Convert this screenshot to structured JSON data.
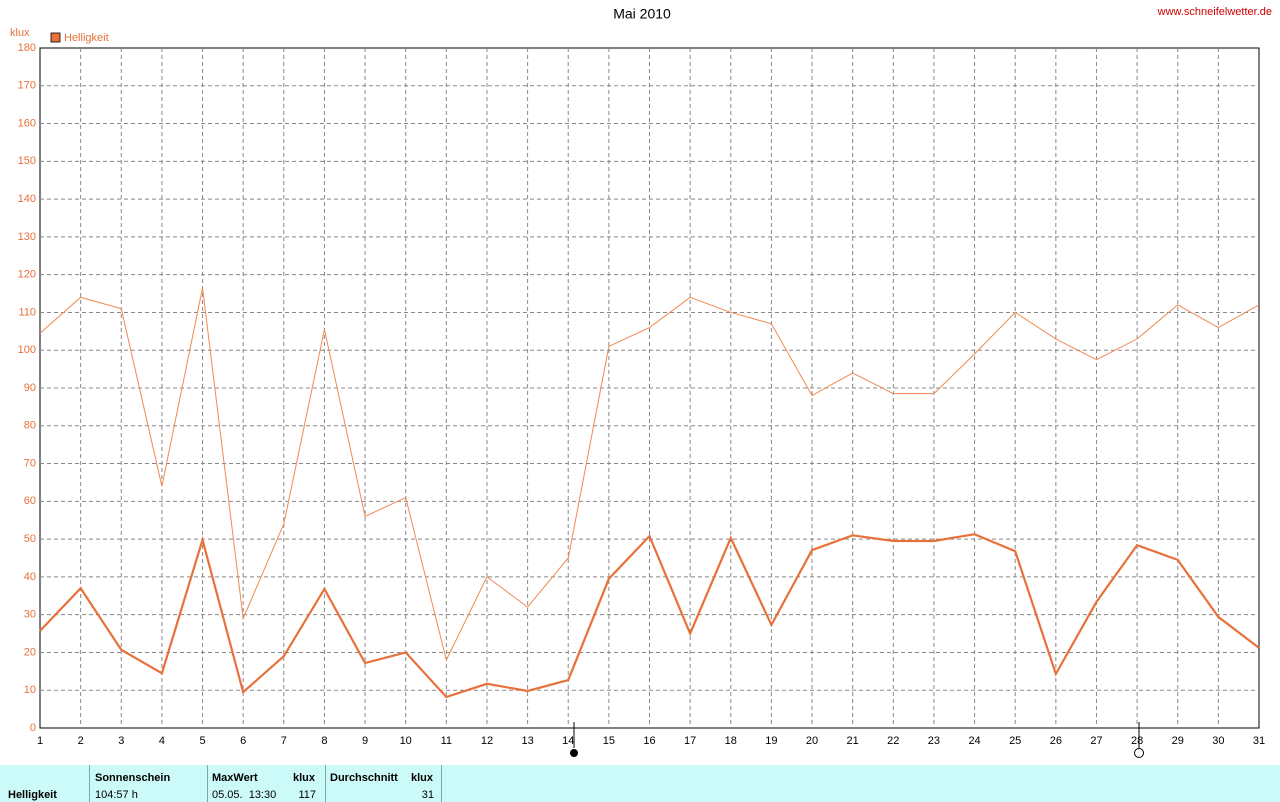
{
  "chart_data": {
    "type": "line",
    "title": "Mai 2010",
    "source": "www.schneifelwetter.de",
    "y_unit": "klux",
    "x": [
      1,
      2,
      3,
      4,
      5,
      6,
      7,
      8,
      9,
      10,
      11,
      12,
      13,
      14,
      15,
      16,
      17,
      18,
      19,
      20,
      21,
      22,
      23,
      24,
      25,
      26,
      27,
      28,
      29,
      30,
      31
    ],
    "series": [
      {
        "name": "Helligkeit",
        "color": "#e8703a",
        "width": 2.2,
        "values": [
          25.7,
          37,
          20.7,
          14.5,
          49.8,
          9.5,
          19,
          36.8,
          17.2,
          20,
          8.2,
          11.7,
          9.8,
          12.7,
          39.5,
          50.8,
          25,
          50.3,
          27.3,
          47.1,
          51,
          49.5,
          49.5,
          51.3,
          46.8,
          14.3,
          33.4,
          48.4,
          44.5,
          29.4,
          21.2
        ]
      },
      {
        "color": "#f08a50",
        "width": 1,
        "values": [
          104.5,
          114,
          111,
          64,
          116.5,
          29,
          54,
          105.5,
          56,
          61,
          18,
          40,
          32,
          45,
          101,
          106,
          114,
          110,
          107,
          88,
          94,
          88.5,
          88.5,
          99,
          110,
          103,
          97.5,
          103,
          112,
          106,
          112
        ]
      }
    ],
    "xlim": [
      1,
      31
    ],
    "xticks": [
      1,
      2,
      3,
      4,
      5,
      6,
      7,
      8,
      9,
      10,
      11,
      12,
      13,
      14,
      15,
      16,
      17,
      18,
      19,
      20,
      21,
      22,
      23,
      24,
      25,
      26,
      27,
      28,
      29,
      30,
      31
    ],
    "ylim": [
      0,
      180
    ],
    "yticks": [
      0,
      10,
      20,
      30,
      40,
      50,
      60,
      70,
      80,
      90,
      100,
      110,
      120,
      130,
      140,
      150,
      160,
      170,
      180
    ],
    "grid": true,
    "legend": "top-left"
  },
  "table": {
    "headers": [
      "Sonnenschein",
      "MaxWert",
      "klux",
      "Durchschnitt",
      "klux"
    ],
    "row": [
      "Helligkeit",
      "104:57 h",
      "05.05.  13:30",
      "117",
      "31"
    ]
  }
}
